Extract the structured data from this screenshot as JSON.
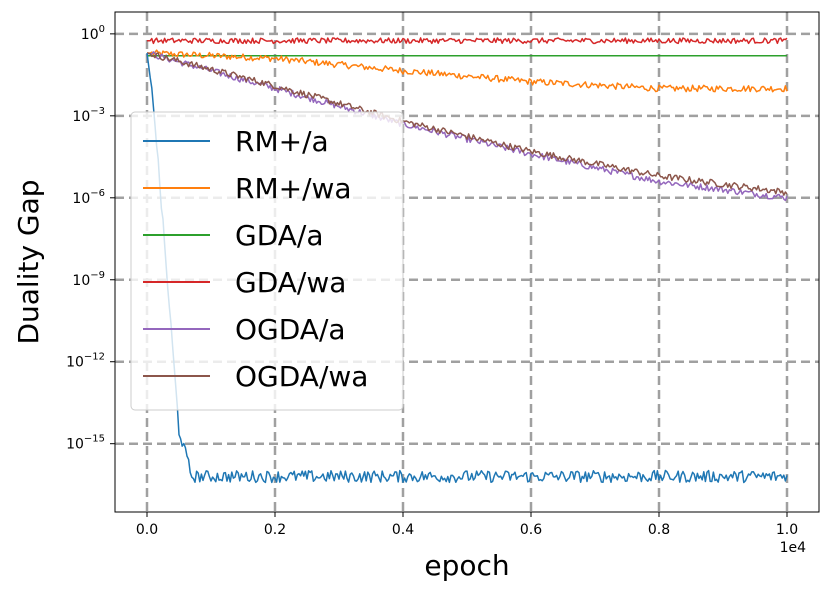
{
  "chart_data": {
    "type": "line",
    "title": "",
    "xlabel": "epoch",
    "ylabel": "Duality Gap",
    "x_offset_label": "1e4",
    "x_scale": "linear",
    "y_scale": "log",
    "xlim": [
      -0.05,
      1.05
    ],
    "ylim_log10": [
      -17.5,
      0.8
    ],
    "x_ticks": [
      0.0,
      0.2,
      0.4,
      0.6,
      0.8,
      1.0
    ],
    "x_tick_labels": [
      "0.0",
      "0.2",
      "0.4",
      "0.6",
      "0.8",
      "1.0"
    ],
    "y_ticks_log10": [
      0,
      -3,
      -6,
      -9,
      -12,
      -15
    ],
    "y_tick_labels": [
      {
        "base": "10",
        "exp": "0"
      },
      {
        "base": "10",
        "exp": "−3"
      },
      {
        "base": "10",
        "exp": "−6"
      },
      {
        "base": "10",
        "exp": "−9"
      },
      {
        "base": "10",
        "exp": "−12"
      },
      {
        "base": "10",
        "exp": "−15"
      }
    ],
    "grid": true,
    "grid_style": "dashed",
    "legend_position": "center-left",
    "series": [
      {
        "name": "RM+/a",
        "color": "#1f77b4",
        "log10_y": [
          [
            0.0,
            -0.7
          ],
          [
            0.01,
            -2.5
          ],
          [
            0.02,
            -5.5
          ],
          [
            0.03,
            -8.5
          ],
          [
            0.04,
            -11.5
          ],
          [
            0.05,
            -14.5
          ],
          [
            0.07,
            -16.2
          ],
          [
            0.2,
            -16.2
          ],
          [
            0.4,
            -16.2
          ],
          [
            0.6,
            -16.2
          ],
          [
            0.8,
            -16.2
          ],
          [
            1.0,
            -16.2
          ]
        ],
        "noise": 0.22
      },
      {
        "name": "RM+/wa",
        "color": "#ff7f0e",
        "log10_y": [
          [
            0.0,
            -0.7
          ],
          [
            0.2,
            -0.9
          ],
          [
            0.4,
            -1.35
          ],
          [
            0.6,
            -1.75
          ],
          [
            0.8,
            -2.0
          ],
          [
            1.0,
            -2.0
          ]
        ],
        "noise": 0.12
      },
      {
        "name": "GDA/a",
        "color": "#2ca02c",
        "log10_y": [
          [
            0.0,
            -0.8
          ],
          [
            1.0,
            -0.8
          ]
        ],
        "noise": 0.0
      },
      {
        "name": "GDA/wa",
        "color": "#d62728",
        "log10_y": [
          [
            0.0,
            -0.25
          ],
          [
            0.5,
            -0.25
          ],
          [
            1.0,
            -0.25
          ]
        ],
        "noise": 0.1
      },
      {
        "name": "OGDA/a",
        "color": "#9467bd",
        "log10_y": [
          [
            0.0,
            -0.7
          ],
          [
            0.2,
            -2.0
          ],
          [
            0.4,
            -3.3
          ],
          [
            0.6,
            -4.4
          ],
          [
            0.8,
            -5.4
          ],
          [
            1.0,
            -6.0
          ]
        ],
        "noise": 0.12
      },
      {
        "name": "OGDA/wa",
        "color": "#8c564b",
        "log10_y": [
          [
            0.0,
            -0.7
          ],
          [
            0.2,
            -1.9
          ],
          [
            0.4,
            -3.2
          ],
          [
            0.6,
            -4.3
          ],
          [
            0.8,
            -5.2
          ],
          [
            1.0,
            -5.8
          ]
        ],
        "noise": 0.12
      }
    ]
  }
}
